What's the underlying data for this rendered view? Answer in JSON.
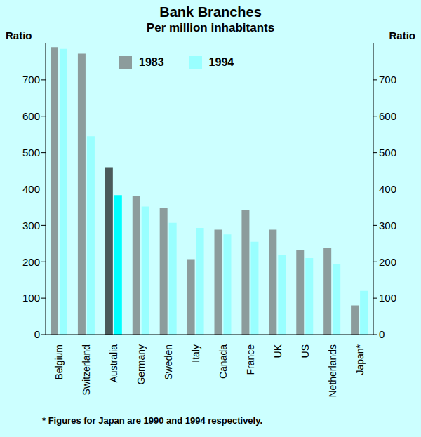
{
  "chart_data": {
    "type": "bar",
    "title": "Bank Branches",
    "subtitle": "Per million inhabitants",
    "y_label": "Ratio",
    "note": "*  Figures for Japan are 1990 and 1994 respectively.",
    "categories": [
      "Belgium",
      "Switzerland",
      "Australia",
      "Germany",
      "Sweden",
      "Italy",
      "Canada",
      "France",
      "UK",
      "US",
      "Netherlands",
      "Japan*"
    ],
    "series": [
      {
        "name": "1983",
        "color": "#8c9c9c",
        "colors": [
          "#8c9c9c",
          "#8c9c9c",
          "#4a5a5a",
          "#8c9c9c",
          "#8c9c9c",
          "#8c9c9c",
          "#8c9c9c",
          "#8c9c9c",
          "#8c9c9c",
          "#8c9c9c",
          "#8c9c9c",
          "#8c9c9c"
        ],
        "values": [
          790,
          772,
          460,
          380,
          348,
          207,
          288,
          341,
          288,
          233,
          237,
          80
        ]
      },
      {
        "name": "1994",
        "color": "#99ffff",
        "colors": [
          "#99ffff",
          "#99ffff",
          "#00ffff",
          "#99ffff",
          "#99ffff",
          "#99ffff",
          "#99ffff",
          "#99ffff",
          "#99ffff",
          "#99ffff",
          "#99ffff",
          "#99ffff"
        ],
        "values": [
          785,
          545,
          383,
          352,
          307,
          293,
          275,
          255,
          220,
          210,
          193,
          120
        ]
      }
    ],
    "ylim": [
      0,
      800
    ],
    "yticks": [
      0,
      100,
      200,
      300,
      400,
      500,
      600,
      700
    ],
    "legend": "top",
    "grid": false
  }
}
